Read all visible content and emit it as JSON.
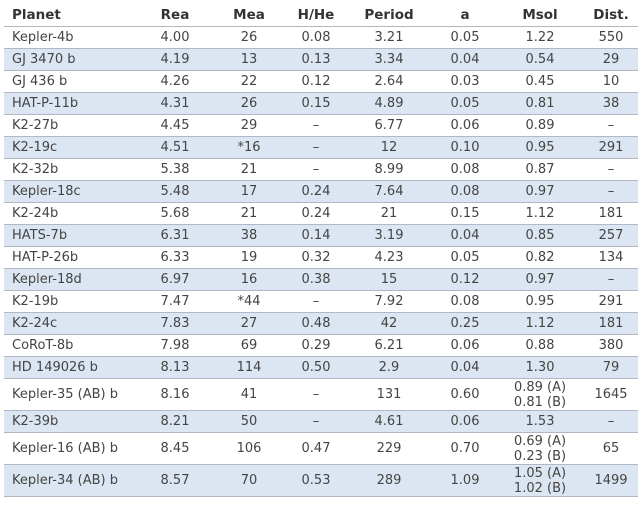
{
  "table": {
    "headers": [
      "Planet",
      "Rea",
      "Mea",
      "H/He",
      "Period",
      "a",
      "Msol",
      "Dist."
    ],
    "rows": [
      [
        "Kepler-4b",
        "4.00",
        "26",
        "0.08",
        "3.21",
        "0.05",
        "1.22",
        "550"
      ],
      [
        "GJ 3470 b",
        "4.19",
        "13",
        "0.13",
        "3.34",
        "0.04",
        "0.54",
        "29"
      ],
      [
        "GJ 436 b",
        "4.26",
        "22",
        "0.12",
        "2.64",
        "0.03",
        "0.45",
        "10"
      ],
      [
        "HAT-P-11b",
        "4.31",
        "26",
        "0.15",
        "4.89",
        "0.05",
        "0.81",
        "38"
      ],
      [
        "K2-27b",
        "4.45",
        "29",
        "–",
        "6.77",
        "0.06",
        "0.89",
        "–"
      ],
      [
        "K2-19c",
        "4.51",
        "*16",
        "–",
        "12",
        "0.10",
        "0.95",
        "291"
      ],
      [
        "K2-32b",
        "5.38",
        "21",
        "–",
        "8.99",
        "0.08",
        "0.87",
        "–"
      ],
      [
        "Kepler-18c",
        "5.48",
        "17",
        "0.24",
        "7.64",
        "0.08",
        "0.97",
        "–"
      ],
      [
        "K2-24b",
        "5.68",
        "21",
        "0.24",
        "21",
        "0.15",
        "1.12",
        "181"
      ],
      [
        "HATS-7b",
        "6.31",
        "38",
        "0.14",
        "3.19",
        "0.04",
        "0.85",
        "257"
      ],
      [
        "HAT-P-26b",
        "6.33",
        "19",
        "0.32",
        "4.23",
        "0.05",
        "0.82",
        "134"
      ],
      [
        "Kepler-18d",
        "6.97",
        "16",
        "0.38",
        "15",
        "0.12",
        "0.97",
        "–"
      ],
      [
        "K2-19b",
        "7.47",
        "*44",
        "–",
        "7.92",
        "0.08",
        "0.95",
        "291"
      ],
      [
        "K2-24c",
        "7.83",
        "27",
        "0.48",
        "42",
        "0.25",
        "1.12",
        "181"
      ],
      [
        "CoRoT-8b",
        "7.98",
        "69",
        "0.29",
        "6.21",
        "0.06",
        "0.88",
        "380"
      ],
      [
        "HD 149026 b",
        "8.13",
        "114",
        "0.50",
        "2.9",
        "0.04",
        "1.30",
        "79"
      ],
      [
        "Kepler-35 (AB) b",
        "8.16",
        "41",
        "–",
        "131",
        "0.60",
        "0.89 (A)|0.81 (B)",
        "1645"
      ],
      [
        "K2-39b",
        "8.21",
        "50",
        "–",
        "4.61",
        "0.06",
        "1.53",
        "–"
      ],
      [
        "Kepler-16 (AB) b",
        "8.45",
        "106",
        "0.47",
        "229",
        "0.70",
        "0.69 (A)|0.23 (B)",
        "65"
      ],
      [
        "Kepler-34 (AB) b",
        "8.57",
        "70",
        "0.53",
        "289",
        "1.09",
        "1.05 (A)|1.02 (B)",
        "1499"
      ]
    ]
  }
}
